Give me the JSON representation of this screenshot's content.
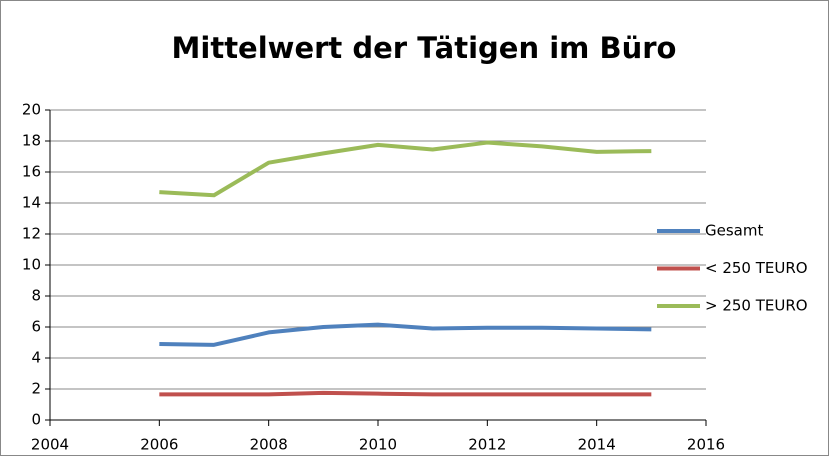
{
  "chart_data": {
    "type": "line",
    "title": "Mittelwert der Tätigen im Büro",
    "x": [
      2006,
      2007,
      2008,
      2009,
      2010,
      2011,
      2012,
      2013,
      2014,
      2015
    ],
    "series": [
      {
        "name": "Gesamt",
        "color": "#4f81bd",
        "values": [
          4.9,
          4.85,
          5.65,
          6.0,
          6.15,
          5.9,
          5.95,
          5.95,
          5.9,
          5.85
        ]
      },
      {
        "name": "< 250 TEURO",
        "color": "#c0504d",
        "values": [
          1.65,
          1.65,
          1.65,
          1.75,
          1.7,
          1.65,
          1.65,
          1.65,
          1.65,
          1.65
        ]
      },
      {
        "name": "> 250 TEURO",
        "color": "#9bbb59",
        "values": [
          14.7,
          14.5,
          16.6,
          17.2,
          17.75,
          17.45,
          17.9,
          17.65,
          17.3,
          17.35
        ]
      }
    ],
    "xlim": [
      2004,
      2016
    ],
    "xticks": [
      2004,
      2006,
      2008,
      2010,
      2012,
      2014,
      2016
    ],
    "ylim": [
      0,
      20
    ],
    "yticks": [
      0,
      2,
      4,
      6,
      8,
      10,
      12,
      14,
      16,
      18,
      20
    ],
    "grid": true,
    "legend": "right"
  }
}
